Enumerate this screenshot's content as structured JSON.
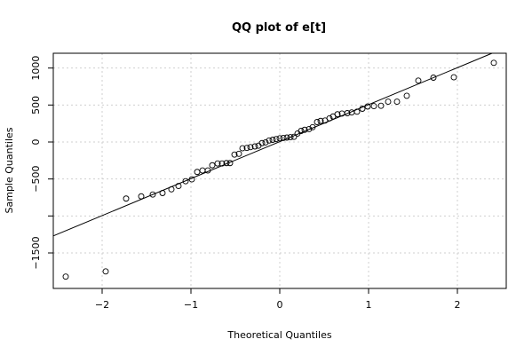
{
  "chart_data": {
    "type": "scatter",
    "title": "QQ plot of e[t]",
    "xlabel": "Theoretical Quantiles",
    "ylabel": "Sample Quantiles",
    "xlim": [
      -2.55,
      2.55
    ],
    "ylim": [
      -1980,
      1200
    ],
    "x_ticks": [
      -2,
      -1,
      0,
      1,
      2
    ],
    "x_tick_labels": [
      "−2",
      "−1",
      "0",
      "1",
      "2"
    ],
    "y_ticks": [
      -1500,
      -500,
      0,
      500,
      1000
    ],
    "y_tick_labels": [
      "−1500",
      "−500",
      "0",
      "500",
      "1000"
    ],
    "y_tick_marks": [
      -1500,
      -1000,
      -500,
      0,
      500,
      1000
    ],
    "grid": true,
    "reference_line": {
      "intercept": 5,
      "slope": 500
    },
    "points": [
      [
        -2.41,
        -1820
      ],
      [
        -1.96,
        -1750
      ],
      [
        -1.73,
        -765
      ],
      [
        -1.56,
        -735
      ],
      [
        -1.43,
        -710
      ],
      [
        -1.32,
        -690
      ],
      [
        -1.22,
        -640
      ],
      [
        -1.14,
        -595
      ],
      [
        -1.06,
        -530
      ],
      [
        -0.99,
        -505
      ],
      [
        -0.93,
        -405
      ],
      [
        -0.87,
        -385
      ],
      [
        -0.81,
        -385
      ],
      [
        -0.76,
        -315
      ],
      [
        -0.7,
        -290
      ],
      [
        -0.65,
        -290
      ],
      [
        -0.6,
        -285
      ],
      [
        -0.56,
        -285
      ],
      [
        -0.51,
        -170
      ],
      [
        -0.46,
        -160
      ],
      [
        -0.42,
        -85
      ],
      [
        -0.37,
        -80
      ],
      [
        -0.33,
        -70
      ],
      [
        -0.28,
        -60
      ],
      [
        -0.24,
        -50
      ],
      [
        -0.2,
        -15
      ],
      [
        -0.16,
        -5
      ],
      [
        -0.12,
        20
      ],
      [
        -0.08,
        30
      ],
      [
        -0.04,
        40
      ],
      [
        0.0,
        50
      ],
      [
        0.04,
        55
      ],
      [
        0.08,
        60
      ],
      [
        0.12,
        65
      ],
      [
        0.16,
        70
      ],
      [
        0.2,
        115
      ],
      [
        0.24,
        150
      ],
      [
        0.28,
        165
      ],
      [
        0.33,
        175
      ],
      [
        0.37,
        200
      ],
      [
        0.42,
        270
      ],
      [
        0.46,
        285
      ],
      [
        0.51,
        290
      ],
      [
        0.56,
        320
      ],
      [
        0.6,
        345
      ],
      [
        0.65,
        375
      ],
      [
        0.7,
        385
      ],
      [
        0.76,
        390
      ],
      [
        0.81,
        400
      ],
      [
        0.87,
        410
      ],
      [
        0.93,
        450
      ],
      [
        0.99,
        480
      ],
      [
        1.06,
        485
      ],
      [
        1.14,
        490
      ],
      [
        1.22,
        545
      ],
      [
        1.32,
        545
      ],
      [
        1.43,
        625
      ],
      [
        1.56,
        830
      ],
      [
        1.73,
        870
      ],
      [
        1.96,
        875
      ],
      [
        2.41,
        1070
      ]
    ]
  }
}
